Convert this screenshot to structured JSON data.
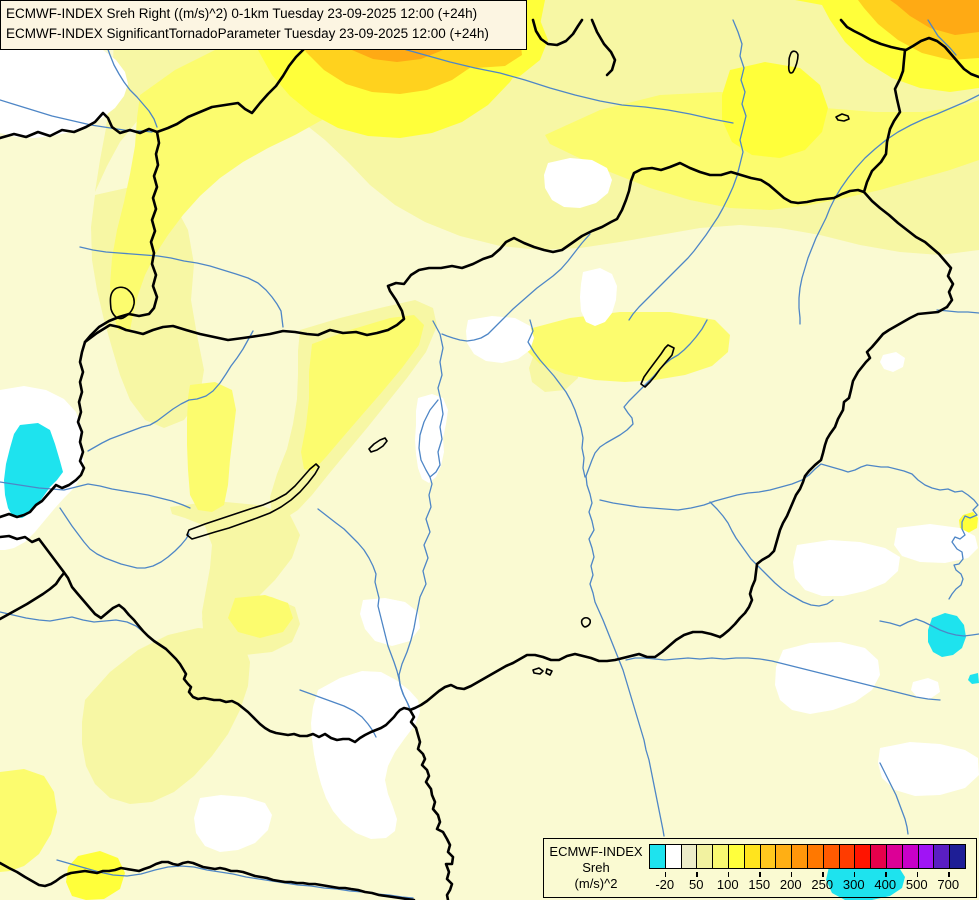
{
  "title_box": {
    "line1": "ECMWF-INDEX Sreh Right ((m/s)^2) 0-1km Tuesday 23-09-2025 12:00 (+24h)",
    "line2": "ECMWF-INDEX SignificantTornadoParameter Tuesday 23-09-2025 12:00 (+24h)"
  },
  "legend": {
    "product_label": "ECMWF-INDEX",
    "parameter_label": "Sreh",
    "units_label": "(m/s)^2",
    "colorbar_colors": [
      "#1EE3EE",
      "#FFFFFF",
      "#ECECC9",
      "#F2F2A0",
      "#F8F872",
      "#FFFF3C",
      "#FFE41E",
      "#FFC81E",
      "#FFAF14",
      "#FF960A",
      "#FF7800",
      "#FF5A00",
      "#FF3C00",
      "#FF1400",
      "#E6004B",
      "#DC0096",
      "#C800C8",
      "#A014F5",
      "#5A1EC3",
      "#1E1E96"
    ],
    "ticks": [
      {
        "label": "-20",
        "after_cell": 1
      },
      {
        "label": "50",
        "after_cell": 3
      },
      {
        "label": "100",
        "after_cell": 5
      },
      {
        "label": "150",
        "after_cell": 7
      },
      {
        "label": "200",
        "after_cell": 9
      },
      {
        "label": "250",
        "after_cell": 11
      },
      {
        "label": "300",
        "after_cell": 13
      },
      {
        "label": "400",
        "after_cell": 15
      },
      {
        "label": "500",
        "after_cell": 17
      },
      {
        "label": "700",
        "after_cell": 19
      }
    ]
  },
  "map": {
    "colors": {
      "background": "#FAFAD2",
      "white_patch": "#FFFFFF",
      "yellow_l2": "#F7F7A4",
      "yellow_l3": "#FCFC6E",
      "yellow_l4": "#FFFF3A",
      "gold_l5": "#FFD21E",
      "orange_l6": "#FFAA14",
      "cyan": "#1EE3EE",
      "river": "#4E86C6",
      "border": "#000000",
      "title_bg": "#FCF5E2"
    }
  }
}
